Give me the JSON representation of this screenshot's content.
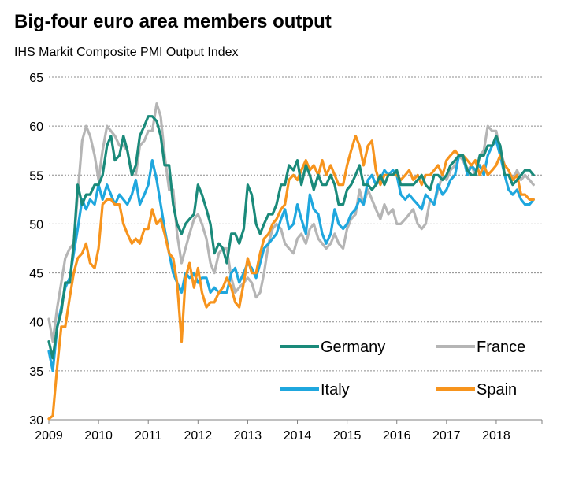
{
  "chart_data": {
    "type": "line",
    "title": "Big-four euro area members output",
    "subtitle": "IHS Markit Composite PMI Output Index",
    "xlabel": "",
    "ylabel": "",
    "ylim": [
      30,
      65
    ],
    "yticks": [
      30,
      35,
      40,
      45,
      50,
      55,
      60,
      65
    ],
    "xlim": [
      2009.0,
      2018.92
    ],
    "xticks": [
      "2009",
      "2010",
      "2011",
      "2012",
      "2013",
      "2014",
      "2015",
      "2016",
      "2017",
      "2018"
    ],
    "grid": "horizontal dotted",
    "legend": "bottom-right (inside plot)",
    "series": [
      {
        "name": "Germany",
        "color": "#1a8a7a",
        "x": [
          2009.0,
          2009.08,
          2009.17,
          2009.25,
          2009.33,
          2009.42,
          2009.5,
          2009.58,
          2009.67,
          2009.75,
          2009.83,
          2009.92,
          2010.0,
          2010.08,
          2010.17,
          2010.25,
          2010.33,
          2010.42,
          2010.5,
          2010.58,
          2010.67,
          2010.75,
          2010.83,
          2010.92,
          2011.0,
          2011.08,
          2011.17,
          2011.25,
          2011.33,
          2011.42,
          2011.5,
          2011.58,
          2011.67,
          2011.75,
          2011.83,
          2011.92,
          2012.0,
          2012.08,
          2012.17,
          2012.25,
          2012.33,
          2012.42,
          2012.5,
          2012.58,
          2012.67,
          2012.75,
          2012.83,
          2012.92,
          2013.0,
          2013.08,
          2013.17,
          2013.25,
          2013.33,
          2013.42,
          2013.5,
          2013.58,
          2013.67,
          2013.75,
          2013.83,
          2013.92,
          2014.0,
          2014.08,
          2014.17,
          2014.25,
          2014.33,
          2014.42,
          2014.5,
          2014.58,
          2014.67,
          2014.75,
          2014.83,
          2014.92,
          2015.0,
          2015.08,
          2015.17,
          2015.25,
          2015.33,
          2015.42,
          2015.5,
          2015.58,
          2015.67,
          2015.75,
          2015.83,
          2015.92,
          2016.0,
          2016.08,
          2016.17,
          2016.25,
          2016.33,
          2016.42,
          2016.5,
          2016.58,
          2016.67,
          2016.75,
          2016.83,
          2016.92,
          2017.0,
          2017.08,
          2017.17,
          2017.25,
          2017.33,
          2017.42,
          2017.5,
          2017.58,
          2017.67,
          2017.75,
          2017.83,
          2017.92,
          2018.0,
          2018.08,
          2018.17,
          2018.25,
          2018.33,
          2018.42,
          2018.5,
          2018.58,
          2018.67,
          2018.75
        ],
        "values": [
          38.0,
          36.3,
          39.5,
          41.0,
          44.0,
          44.0,
          48.0,
          54.0,
          52.0,
          53.0,
          53.0,
          54.0,
          54.0,
          55.0,
          58.0,
          59.0,
          56.5,
          57.0,
          59.0,
          57.5,
          55.0,
          56.0,
          59.0,
          60.0,
          61.0,
          61.0,
          60.5,
          59.0,
          56.0,
          56.0,
          52.0,
          50.0,
          49.0,
          50.0,
          50.5,
          51.0,
          54.0,
          53.0,
          51.5,
          50.0,
          47.0,
          48.0,
          47.5,
          46.0,
          49.0,
          49.0,
          48.0,
          49.5,
          54.0,
          53.0,
          50.0,
          49.0,
          50.0,
          51.0,
          51.0,
          52.0,
          54.0,
          54.0,
          56.0,
          55.5,
          56.5,
          54.0,
          56.0,
          55.0,
          53.5,
          55.0,
          54.0,
          54.0,
          55.0,
          54.0,
          52.0,
          52.0,
          53.5,
          54.0,
          55.0,
          56.0,
          54.0,
          54.0,
          53.5,
          54.0,
          55.0,
          54.0,
          55.0,
          55.0,
          55.5,
          54.0,
          54.0,
          54.0,
          54.0,
          54.5,
          55.0,
          54.0,
          53.5,
          55.0,
          55.0,
          54.5,
          55.0,
          56.0,
          56.5,
          57.0,
          57.0,
          55.5,
          55.0,
          55.0,
          57.0,
          57.0,
          58.0,
          58.0,
          59.0,
          58.0,
          55.0,
          55.0,
          54.0,
          54.5,
          55.0,
          55.5,
          55.5,
          55.0
        ]
      },
      {
        "name": "France",
        "color": "#b5b5b5",
        "x": [
          2009.0,
          2009.08,
          2009.17,
          2009.25,
          2009.33,
          2009.42,
          2009.5,
          2009.58,
          2009.67,
          2009.75,
          2009.83,
          2009.92,
          2010.0,
          2010.08,
          2010.17,
          2010.25,
          2010.33,
          2010.42,
          2010.5,
          2010.58,
          2010.67,
          2010.75,
          2010.83,
          2010.92,
          2011.0,
          2011.08,
          2011.17,
          2011.25,
          2011.33,
          2011.42,
          2011.5,
          2011.58,
          2011.67,
          2011.75,
          2011.83,
          2011.92,
          2012.0,
          2012.08,
          2012.17,
          2012.25,
          2012.33,
          2012.42,
          2012.5,
          2012.58,
          2012.67,
          2012.75,
          2012.83,
          2012.92,
          2013.0,
          2013.08,
          2013.17,
          2013.25,
          2013.33,
          2013.42,
          2013.5,
          2013.58,
          2013.67,
          2013.75,
          2013.83,
          2013.92,
          2014.0,
          2014.08,
          2014.17,
          2014.25,
          2014.33,
          2014.42,
          2014.5,
          2014.58,
          2014.67,
          2014.75,
          2014.83,
          2014.92,
          2015.0,
          2015.08,
          2015.17,
          2015.25,
          2015.33,
          2015.42,
          2015.5,
          2015.58,
          2015.67,
          2015.75,
          2015.83,
          2015.92,
          2016.0,
          2016.08,
          2016.17,
          2016.25,
          2016.33,
          2016.42,
          2016.5,
          2016.58,
          2016.67,
          2016.75,
          2016.83,
          2016.92,
          2017.0,
          2017.08,
          2017.17,
          2017.25,
          2017.33,
          2017.42,
          2017.5,
          2017.58,
          2017.67,
          2017.75,
          2017.83,
          2017.92,
          2018.0,
          2018.08,
          2018.17,
          2018.25,
          2018.33,
          2018.42,
          2018.5,
          2018.58,
          2018.67,
          2018.75
        ],
        "values": [
          40.3,
          38.0,
          41.5,
          44.0,
          46.5,
          47.5,
          48.0,
          53.0,
          58.5,
          60.0,
          59.0,
          57.0,
          54.5,
          57.5,
          60.0,
          59.5,
          59.0,
          58.0,
          58.0,
          57.5,
          55.0,
          55.0,
          58.0,
          58.5,
          59.5,
          59.5,
          62.3,
          61.0,
          57.0,
          53.5,
          53.5,
          49.0,
          46.0,
          47.5,
          49.0,
          50.5,
          51.0,
          50.0,
          48.5,
          46.0,
          45.0,
          47.0,
          47.5,
          47.5,
          44.5,
          43.0,
          43.5,
          44.0,
          44.5,
          44.0,
          42.5,
          43.0,
          45.0,
          48.0,
          49.5,
          50.0,
          49.5,
          48.0,
          47.5,
          47.0,
          48.5,
          49.0,
          48.0,
          49.5,
          50.0,
          48.5,
          48.0,
          47.5,
          48.0,
          49.0,
          48.0,
          47.5,
          49.5,
          50.5,
          51.0,
          53.5,
          52.0,
          53.5,
          52.5,
          51.5,
          50.5,
          52.0,
          51.0,
          51.5,
          50.0,
          50.0,
          50.5,
          51.0,
          51.5,
          50.0,
          49.5,
          50.0,
          52.5,
          52.0,
          53.5,
          55.0,
          54.5,
          55.5,
          56.0,
          57.0,
          56.5,
          55.5,
          56.0,
          55.0,
          57.0,
          57.5,
          60.0,
          59.5,
          59.5,
          57.5,
          56.0,
          55.5,
          54.5,
          55.5,
          54.5,
          55.0,
          54.5,
          54.0
        ]
      },
      {
        "name": "Italy",
        "color": "#1fa7de",
        "x": [
          2009.0,
          2009.08,
          2009.17,
          2009.25,
          2009.33,
          2009.42,
          2009.5,
          2009.58,
          2009.67,
          2009.75,
          2009.83,
          2009.92,
          2010.0,
          2010.08,
          2010.17,
          2010.25,
          2010.33,
          2010.42,
          2010.5,
          2010.58,
          2010.67,
          2010.75,
          2010.83,
          2010.92,
          2011.0,
          2011.08,
          2011.17,
          2011.25,
          2011.33,
          2011.42,
          2011.5,
          2011.58,
          2011.67,
          2011.75,
          2011.83,
          2011.92,
          2012.0,
          2012.08,
          2012.17,
          2012.25,
          2012.33,
          2012.42,
          2012.5,
          2012.58,
          2012.67,
          2012.75,
          2012.83,
          2012.92,
          2013.0,
          2013.08,
          2013.17,
          2013.25,
          2013.33,
          2013.42,
          2013.5,
          2013.58,
          2013.67,
          2013.75,
          2013.83,
          2013.92,
          2014.0,
          2014.08,
          2014.17,
          2014.25,
          2014.33,
          2014.42,
          2014.5,
          2014.58,
          2014.67,
          2014.75,
          2014.83,
          2014.92,
          2015.0,
          2015.08,
          2015.17,
          2015.25,
          2015.33,
          2015.42,
          2015.5,
          2015.58,
          2015.67,
          2015.75,
          2015.83,
          2015.92,
          2016.0,
          2016.08,
          2016.17,
          2016.25,
          2016.33,
          2016.42,
          2016.5,
          2016.58,
          2016.67,
          2016.75,
          2016.83,
          2016.92,
          2017.0,
          2017.08,
          2017.17,
          2017.25,
          2017.33,
          2017.42,
          2017.5,
          2017.58,
          2017.67,
          2017.75,
          2017.83,
          2017.92,
          2018.0,
          2018.08,
          2018.17,
          2018.25,
          2018.33,
          2018.42,
          2018.5,
          2018.58,
          2018.67,
          2018.75
        ],
        "values": [
          37.0,
          35.0,
          39.5,
          41.5,
          43.5,
          44.5,
          47.0,
          49.5,
          52.5,
          51.5,
          52.5,
          52.0,
          54.0,
          52.5,
          54.0,
          53.0,
          52.0,
          53.0,
          52.5,
          52.0,
          53.0,
          54.5,
          52.0,
          53.0,
          54.0,
          56.5,
          54.5,
          52.0,
          49.5,
          47.0,
          45.0,
          44.0,
          43.0,
          45.0,
          44.5,
          45.0,
          44.0,
          44.5,
          44.5,
          43.0,
          43.5,
          43.0,
          43.0,
          43.0,
          45.0,
          45.5,
          44.0,
          45.0,
          46.0,
          45.5,
          44.5,
          46.0,
          47.5,
          48.0,
          48.5,
          49.0,
          50.5,
          51.5,
          49.5,
          50.0,
          52.0,
          50.5,
          49.0,
          53.0,
          51.5,
          51.0,
          49.0,
          48.0,
          49.0,
          51.5,
          50.0,
          49.5,
          50.0,
          51.0,
          51.5,
          52.5,
          52.0,
          54.5,
          55.0,
          54.0,
          54.5,
          55.5,
          55.0,
          55.5,
          55.0,
          53.0,
          52.5,
          53.0,
          52.5,
          52.0,
          51.5,
          53.0,
          52.5,
          52.0,
          54.0,
          53.0,
          53.5,
          54.5,
          55.0,
          57.0,
          57.0,
          55.0,
          56.0,
          55.5,
          56.0,
          55.0,
          57.0,
          58.0,
          58.5,
          57.0,
          55.0,
          53.5,
          53.0,
          53.5,
          52.5,
          52.0,
          52.0,
          52.5
        ]
      },
      {
        "name": "Spain",
        "color": "#f7941d",
        "x": [
          2009.0,
          2009.08,
          2009.17,
          2009.25,
          2009.33,
          2009.42,
          2009.5,
          2009.58,
          2009.67,
          2009.75,
          2009.83,
          2009.92,
          2010.0,
          2010.08,
          2010.17,
          2010.25,
          2010.33,
          2010.42,
          2010.5,
          2010.58,
          2010.67,
          2010.75,
          2010.83,
          2010.92,
          2011.0,
          2011.08,
          2011.17,
          2011.25,
          2011.33,
          2011.42,
          2011.5,
          2011.58,
          2011.67,
          2011.75,
          2011.83,
          2011.92,
          2012.0,
          2012.08,
          2012.17,
          2012.25,
          2012.33,
          2012.42,
          2012.5,
          2012.58,
          2012.67,
          2012.75,
          2012.83,
          2012.92,
          2013.0,
          2013.08,
          2013.17,
          2013.25,
          2013.33,
          2013.42,
          2013.5,
          2013.58,
          2013.67,
          2013.75,
          2013.83,
          2013.92,
          2014.0,
          2014.08,
          2014.17,
          2014.25,
          2014.33,
          2014.42,
          2014.5,
          2014.58,
          2014.67,
          2014.75,
          2014.83,
          2014.92,
          2015.0,
          2015.08,
          2015.17,
          2015.25,
          2015.33,
          2015.42,
          2015.5,
          2015.58,
          2015.67,
          2015.75,
          2015.83,
          2015.92,
          2016.0,
          2016.08,
          2016.17,
          2016.25,
          2016.33,
          2016.42,
          2016.5,
          2016.58,
          2016.67,
          2016.75,
          2016.83,
          2016.92,
          2017.0,
          2017.08,
          2017.17,
          2017.25,
          2017.33,
          2017.42,
          2017.5,
          2017.58,
          2017.67,
          2017.75,
          2017.83,
          2017.92,
          2018.0,
          2018.08,
          2018.17,
          2018.25,
          2018.33,
          2018.42,
          2018.5,
          2018.58,
          2018.67,
          2018.75
        ],
        "values": [
          30.1,
          30.4,
          35.5,
          39.5,
          39.5,
          42.5,
          45.0,
          46.5,
          47.0,
          48.0,
          46.0,
          45.5,
          47.5,
          52.0,
          52.5,
          52.5,
          52.0,
          52.0,
          50.0,
          49.0,
          48.0,
          48.5,
          48.0,
          49.5,
          49.5,
          51.5,
          50.0,
          50.5,
          49.0,
          47.0,
          46.5,
          44.0,
          38.0,
          44.5,
          46.0,
          43.5,
          45.5,
          43.0,
          41.5,
          42.0,
          42.0,
          43.0,
          43.5,
          44.5,
          43.5,
          42.0,
          41.5,
          44.0,
          46.5,
          45.0,
          45.0,
          47.0,
          48.5,
          49.0,
          50.0,
          50.5,
          51.5,
          52.0,
          54.5,
          55.0,
          54.5,
          55.5,
          56.5,
          55.5,
          56.0,
          55.0,
          56.5,
          55.0,
          56.0,
          55.0,
          54.0,
          54.0,
          56.0,
          57.5,
          59.0,
          58.0,
          56.0,
          58.0,
          58.5,
          55.5,
          54.0,
          55.0,
          55.0,
          55.0,
          55.0,
          54.5,
          55.0,
          55.5,
          54.5,
          55.0,
          54.0,
          55.0,
          55.0,
          55.5,
          56.0,
          55.0,
          56.5,
          57.0,
          57.5,
          57.0,
          57.0,
          56.5,
          56.0,
          56.5,
          55.0,
          56.0,
          55.0,
          55.5,
          56.0,
          57.0,
          56.0,
          55.5,
          54.5,
          55.0,
          53.0,
          53.0,
          52.5,
          52.5
        ]
      }
    ]
  }
}
